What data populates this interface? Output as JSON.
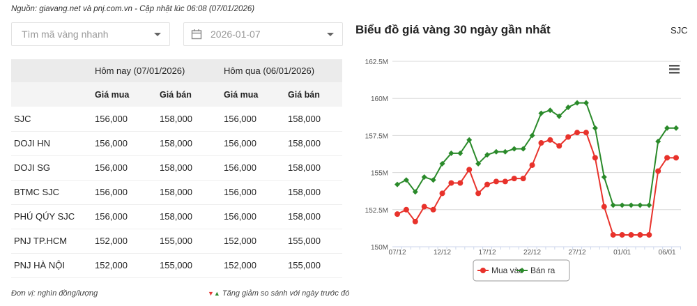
{
  "source_text": "Nguồn: giavang.net và pnj.com.vn - Cập nhật lúc 06:08 (07/01/2026)",
  "search": {
    "placeholder": "Tìm mã vàng nhanh"
  },
  "date_picker": {
    "value": "2026-01-07",
    "icon": "calendar-icon"
  },
  "table": {
    "groups": [
      "Hôm nay (07/01/2026)",
      "Hôm qua (06/01/2026)"
    ],
    "subheaders": [
      "Giá mua",
      "Giá bán",
      "Giá mua",
      "Giá bán"
    ],
    "rows": [
      {
        "name": "SJC",
        "v": [
          "156,000",
          "158,000",
          "156,000",
          "158,000"
        ]
      },
      {
        "name": "DOJI HN",
        "v": [
          "156,000",
          "158,000",
          "156,000",
          "158,000"
        ]
      },
      {
        "name": "DOJI SG",
        "v": [
          "156,000",
          "158,000",
          "156,000",
          "158,000"
        ]
      },
      {
        "name": "BTMC SJC",
        "v": [
          "156,000",
          "158,000",
          "156,000",
          "158,000"
        ]
      },
      {
        "name": "PHÚ QÚY SJC",
        "v": [
          "156,000",
          "158,000",
          "156,000",
          "158,000"
        ]
      },
      {
        "name": "PNJ TP.HCM",
        "v": [
          "152,000",
          "155,000",
          "152,000",
          "155,000"
        ]
      },
      {
        "name": "PNJ HÀ NỘI",
        "v": [
          "152,000",
          "155,000",
          "152,000",
          "155,000"
        ]
      }
    ]
  },
  "footer": {
    "unit": "Đơn vị: nghìn đồng/lượng",
    "legend": "Tăng giảm so sánh với ngày trước đó",
    "up_color": "#2e8b2e",
    "down_color": "#e53935"
  },
  "chart": {
    "title": "Biểu đồ giá vàng 30 ngày gần nhất",
    "code": "SJC"
  },
  "chart_data": {
    "type": "line",
    "title": "Biểu đồ giá vàng 30 ngày gần nhất",
    "x": [
      "07/12",
      "08/12",
      "09/12",
      "10/12",
      "11/12",
      "12/12",
      "13/12",
      "14/12",
      "15/12",
      "16/12",
      "17/12",
      "18/12",
      "19/12",
      "20/12",
      "21/12",
      "22/12",
      "23/12",
      "24/12",
      "25/12",
      "26/12",
      "27/12",
      "28/12",
      "29/12",
      "30/12",
      "31/12",
      "01/01",
      "02/01",
      "03/01",
      "04/01",
      "05/01",
      "06/01",
      "07/01"
    ],
    "x_tick_labels": [
      "07/12",
      "12/12",
      "17/12",
      "22/12",
      "27/12",
      "01/01",
      "06/01"
    ],
    "y_tick_labels": [
      "150M",
      "152.5M",
      "155M",
      "157.5M",
      "160M",
      "162.5M"
    ],
    "ylim": [
      150,
      162.5
    ],
    "y_unit": "M",
    "grid": true,
    "legend_placement": "bottom",
    "series": [
      {
        "name": "Mua vào",
        "color": "#e8322b",
        "values": [
          152.2,
          152.5,
          151.7,
          152.7,
          152.5,
          153.6,
          154.3,
          154.3,
          155.2,
          153.6,
          154.2,
          154.4,
          154.4,
          154.6,
          154.6,
          155.5,
          157.0,
          157.2,
          156.8,
          157.4,
          157.7,
          157.7,
          156.0,
          152.7,
          150.8,
          150.8,
          150.8,
          150.8,
          150.8,
          155.1,
          156.0,
          156.0
        ]
      },
      {
        "name": "Bán ra",
        "color": "#2a8a2a",
        "values": [
          154.2,
          154.5,
          153.7,
          154.7,
          154.5,
          155.6,
          156.3,
          156.3,
          157.2,
          155.6,
          156.2,
          156.4,
          156.4,
          156.6,
          156.6,
          157.5,
          159.0,
          159.2,
          158.8,
          159.4,
          159.7,
          159.7,
          158.0,
          154.7,
          152.8,
          152.8,
          152.8,
          152.8,
          152.8,
          157.1,
          158.0,
          158.0
        ]
      }
    ]
  }
}
